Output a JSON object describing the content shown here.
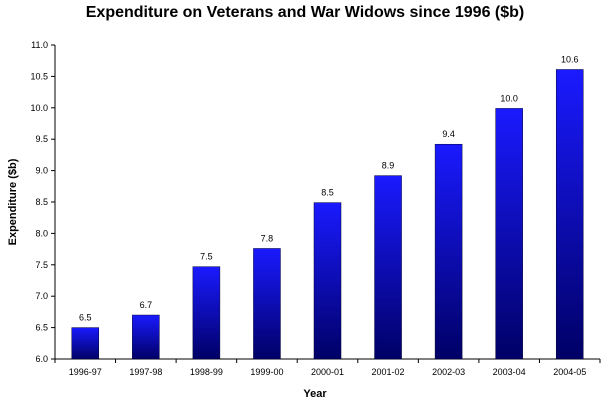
{
  "chart_data": {
    "type": "bar",
    "title": "Expenditure on Veterans and War Widows since 1996 ($b)",
    "xlabel": "Year",
    "ylabel": "Expenditure ($b)",
    "categories": [
      "1996-97",
      "1997-98",
      "1998-99",
      "1999-00",
      "2000-01",
      "2001-02",
      "2002-03",
      "2003-04",
      "2004-05"
    ],
    "values": [
      6.5,
      6.7,
      7.47,
      7.76,
      8.49,
      8.92,
      9.42,
      9.99,
      10.61
    ],
    "data_labels": [
      "6.5",
      "6.7",
      "7.5",
      "7.8",
      "8.5",
      "8.9",
      "9.4",
      "10.0",
      "10.6"
    ],
    "ylim": [
      6.0,
      11.0
    ],
    "yticks": [
      "6.0",
      "6.5",
      "7.0",
      "7.5",
      "8.0",
      "8.5",
      "9.0",
      "9.5",
      "10.0",
      "10.5",
      "11.0"
    ],
    "grid": false,
    "legend": "none",
    "colors": {
      "bar_top": "#1a1aff",
      "bar_bottom": "#000066",
      "axis": "#000000"
    }
  }
}
